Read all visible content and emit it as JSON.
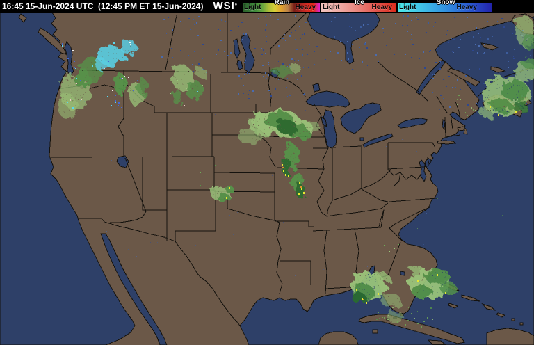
{
  "header": {
    "timestamp": "16:45 15-Jun-2024 UTC  (12:45 PM ET 15-Jun-2024)",
    "logo": "WSI",
    "logo_mark": "°"
  },
  "legend": {
    "sections": [
      {
        "name": "Rain",
        "light_label": "Light",
        "heavy_label": "Heavy",
        "colors": [
          "#2a5e2a",
          "#347434",
          "#418c3c",
          "#62a43e",
          "#a8bc38",
          "#d8d038",
          "#e0a030",
          "#bc8448",
          "#7a2018",
          "#a82420",
          "#d42c24",
          "#e02818",
          "#de24ce"
        ]
      },
      {
        "name": "Ice",
        "light_label": "Light",
        "heavy_label": "Heavy",
        "colors": [
          "#f2c2bc",
          "#eeaaa4",
          "#e8827a",
          "#e0524a",
          "#de2c1c"
        ]
      },
      {
        "name": "Snow",
        "light_label": "Light",
        "heavy_label": "Heavy",
        "colors": [
          "#4ae8e8",
          "#40c2e8",
          "#3292e0",
          "#2a5ad0",
          "#2222aa"
        ]
      }
    ]
  },
  "map": {
    "colors": {
      "water": "#2e4068",
      "land": "#6b5848",
      "coastline": "#14120e",
      "precip_light": "#9cc87c",
      "precip_moderate": "#55964a",
      "precip_heavy": "#2c6e2e",
      "precip_intense": "#e8e832",
      "mixed_snow": "#5ad8f0",
      "mixed_ice": "#ecc6c6",
      "small_lake_dot": "#3c5c9c"
    }
  }
}
